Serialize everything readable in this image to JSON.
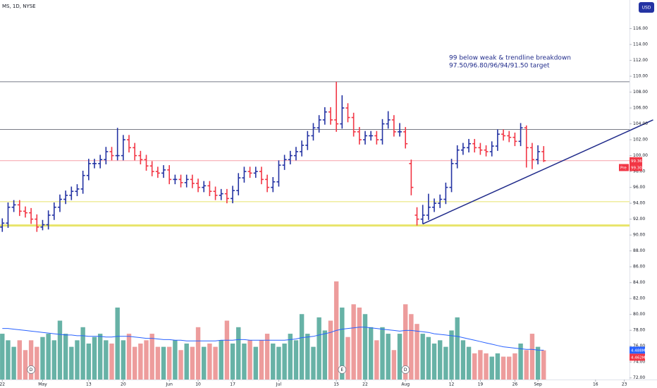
{
  "chart_data": {
    "type": "ohlc",
    "title": "MS, 1D, NYSE",
    "currency": "USD",
    "annotation": [
      "99 below weak & trendline breakdown",
      "97.50/96.80/96/94/91.50 target"
    ],
    "xlim": [
      -0.4,
      108.9
    ],
    "xticks": [
      {
        "value": 0,
        "label": "22"
      },
      {
        "value": 7,
        "label": "May"
      },
      {
        "value": 15,
        "label": "13"
      },
      {
        "value": 21,
        "label": "20"
      },
      {
        "value": 29,
        "label": "Jun"
      },
      {
        "value": 34,
        "label": "10"
      },
      {
        "value": 40,
        "label": "17"
      },
      {
        "value": 48,
        "label": "Jul"
      },
      {
        "value": 58,
        "label": "15"
      },
      {
        "value": 63,
        "label": "22"
      },
      {
        "value": 70,
        "label": "Aug"
      },
      {
        "value": 78,
        "label": "12"
      },
      {
        "value": 83,
        "label": "19"
      },
      {
        "value": 89,
        "label": "26"
      },
      {
        "value": 93,
        "label": "Sep"
      },
      {
        "value": 103,
        "label": "16"
      },
      {
        "value": 108,
        "label": "23"
      }
    ],
    "ylim": [
      71.8,
      119.6
    ],
    "yticks": [
      {
        "value": 116,
        "label": "116.00"
      },
      {
        "value": 114,
        "label": "114.00"
      },
      {
        "value": 112,
        "label": "112.00"
      },
      {
        "value": 110,
        "label": "110.00"
      },
      {
        "value": 108,
        "label": "108.00"
      },
      {
        "value": 106,
        "label": "106.00"
      },
      {
        "value": 104,
        "label": "104.00"
      },
      {
        "value": 102,
        "label": "102.00"
      },
      {
        "value": 100,
        "label": "100.00"
      },
      {
        "value": 98,
        "label": "98.00"
      },
      {
        "value": 96,
        "label": "96.00"
      },
      {
        "value": 94,
        "label": "94.00"
      },
      {
        "value": 92,
        "label": "92.00"
      },
      {
        "value": 90,
        "label": "90.00"
      },
      {
        "value": 88,
        "label": "88.00"
      },
      {
        "value": 86,
        "label": "86.00"
      },
      {
        "value": 84,
        "label": "84.00"
      },
      {
        "value": 82,
        "label": "82.00"
      },
      {
        "value": 80,
        "label": "80.00"
      },
      {
        "value": 78,
        "label": "78.00"
      },
      {
        "value": 76,
        "label": "76.00"
      },
      {
        "value": 74,
        "label": "74.00"
      },
      {
        "value": 72,
        "label": "72.00"
      }
    ],
    "up_color": "#2433a3",
    "down_color": "#f23645",
    "open": [
      91,
      91.5,
      93.5,
      93.8,
      93,
      92.8,
      92,
      91,
      91.3,
      92.5,
      93.5,
      94.5,
      95,
      95.5,
      95.8,
      97.5,
      99,
      99,
      99.5,
      100.5,
      100,
      100,
      102,
      101,
      100,
      99.5,
      98.7,
      98,
      97.8,
      98.2,
      97,
      97,
      96.6,
      97,
      96.5,
      96,
      96.2,
      95.5,
      95,
      95.2,
      94.6,
      95.6,
      97.2,
      98,
      97.8,
      98,
      97,
      96,
      96.7,
      98.8,
      99.5,
      100,
      100.5,
      101.3,
      102.5,
      103.5,
      104.5,
      105.5,
      104.5,
      104,
      106,
      104.8,
      103,
      102,
      102.5,
      102.5,
      102,
      104,
      104.5,
      103,
      103,
      99,
      92.5,
      92,
      92.5,
      93.5,
      94,
      94.5,
      96,
      99,
      100.7,
      101,
      101.5,
      101,
      100.7,
      100.5,
      101.2,
      102.7,
      102.5,
      102.3,
      101.8,
      103.5,
      101,
      99.5,
      100.5
    ],
    "high": [
      92.1,
      94.1,
      94.4,
      94.4,
      93.6,
      93.4,
      92.6,
      91.9,
      93.1,
      94.1,
      95.1,
      95.6,
      96.1,
      96.4,
      98.1,
      99.6,
      99.6,
      100.1,
      101.1,
      101.1,
      103.5,
      102.6,
      102.6,
      101.6,
      100.6,
      100.1,
      99.3,
      98.6,
      98.8,
      98.8,
      97.6,
      97.6,
      97.6,
      97.6,
      97.1,
      96.8,
      96.8,
      96.1,
      95.8,
      95.8,
      96.2,
      97.8,
      98.6,
      98.6,
      98.6,
      98.6,
      97.6,
      97.3,
      99.4,
      100.1,
      100.6,
      101.1,
      101.9,
      103.1,
      104.1,
      105.1,
      106.1,
      106.1,
      109.3,
      107.6,
      106.6,
      105.4,
      103.6,
      103.1,
      103.1,
      103.1,
      104.6,
      105.6,
      105.1,
      104.1,
      103.6,
      99.5,
      93.5,
      93.8,
      95.2,
      94.6,
      95.1,
      96.6,
      99.6,
      101.3,
      101.6,
      102.1,
      102.1,
      101.6,
      101.3,
      101.8,
      103.3,
      103.3,
      103.1,
      102.9,
      104.1,
      103.8,
      101.6,
      101.3,
      101.2
    ],
    "low": [
      90.4,
      90.9,
      92.9,
      92.4,
      92.2,
      91.4,
      90.4,
      90.6,
      90.7,
      91.9,
      92.9,
      93.9,
      94.4,
      94.9,
      95.2,
      96.9,
      98.4,
      98.4,
      98.9,
      99.4,
      99.4,
      99.4,
      100.4,
      99.4,
      98.9,
      98.1,
      97.4,
      97.2,
      97.2,
      96.4,
      96.4,
      96,
      96,
      95.9,
      95.4,
      95.4,
      94.9,
      94.4,
      94.4,
      94,
      94,
      95,
      96.6,
      97.2,
      97.2,
      96.4,
      95.4,
      95.4,
      96.1,
      98.2,
      98.9,
      99.4,
      99.9,
      100.7,
      101.9,
      102.9,
      103.9,
      103.9,
      103,
      103.4,
      104.2,
      102.4,
      101.4,
      101.4,
      101.9,
      101.4,
      101.4,
      103.4,
      102.4,
      102.4,
      100.9,
      95,
      91.2,
      91.4,
      91.9,
      92.9,
      93.4,
      93.9,
      95.4,
      98.4,
      100.1,
      100.4,
      100.4,
      100.1,
      99.9,
      99.9,
      100.6,
      101.9,
      101.7,
      101.2,
      101.2,
      98.5,
      98.3,
      98.9,
      99.2
    ],
    "close": [
      91.5,
      93.5,
      93.8,
      93,
      92.8,
      92,
      91,
      91.3,
      92.5,
      93.5,
      94.5,
      95,
      95.5,
      95.8,
      97.5,
      99,
      99,
      99.5,
      100.5,
      100,
      100,
      102,
      101,
      100,
      99.5,
      98.7,
      98,
      97.8,
      98.2,
      97,
      97,
      96.6,
      97,
      96.5,
      96,
      96.2,
      95.5,
      95,
      95.2,
      94.6,
      95.6,
      97.2,
      98,
      97.8,
      98,
      97,
      96,
      96.7,
      98.8,
      99.5,
      100,
      100.5,
      101.3,
      102.5,
      103.5,
      104.5,
      105.5,
      104.5,
      104,
      106,
      104.8,
      103,
      102,
      102.5,
      102.5,
      102,
      104,
      104.5,
      103,
      103,
      101.5,
      96,
      92,
      92.5,
      93.5,
      94,
      94.5,
      96,
      99,
      100.7,
      101,
      101.5,
      101,
      100.7,
      100.5,
      101.2,
      102.7,
      102.5,
      102.3,
      101.8,
      103.5,
      101,
      99.5,
      100.5,
      99.36
    ],
    "last_price": {
      "value": 99.36,
      "label": "99.36",
      "color": "#f23645"
    },
    "pre_market": {
      "name": "Pre",
      "value": 99.3,
      "label": "99.30"
    },
    "hlines": [
      {
        "value": 109.3,
        "color": "#787b86",
        "width": 1
      },
      {
        "value": 103.3,
        "color": "#787b86",
        "width": 1
      },
      {
        "value": 99.36,
        "color": "#f7a1a8",
        "width": 1
      },
      {
        "value": 94.2,
        "color": "#e8e46a",
        "width": 1
      },
      {
        "value": 91.2,
        "color": "#e8e46a",
        "width": 3
      }
    ],
    "trendline": {
      "start": {
        "index": 73,
        "price": 91.4
      },
      "end": {
        "index": 113,
        "price": 104.5
      },
      "color": "#1f2a8a"
    },
    "events": [
      {
        "index": 5,
        "label": "D"
      },
      {
        "index": 59,
        "label": "E"
      },
      {
        "index": 70,
        "label": "D"
      }
    ],
    "volume": {
      "vlim": [
        0,
        58
      ],
      "up_color": "#4ca597",
      "down_color": "#ea8b8b",
      "ma_color": "#2962ff",
      "values": [
        7,
        6,
        5,
        6,
        4.5,
        6,
        5,
        6.5,
        7,
        6,
        9,
        7,
        5,
        6,
        8,
        5.5,
        6.5,
        7,
        6,
        5.5,
        11,
        6,
        7,
        5,
        5.5,
        6,
        7,
        5,
        5,
        5,
        6,
        4.5,
        5.5,
        5,
        8,
        5,
        5.5,
        5,
        6,
        9,
        5.5,
        8,
        5.5,
        6,
        5,
        6,
        7,
        5.5,
        5,
        5.5,
        7,
        6,
        10,
        7,
        5,
        9.5,
        7.5,
        9,
        15,
        11,
        6.5,
        11.5,
        11,
        10,
        8,
        6,
        8,
        7,
        4.5,
        7,
        11.5,
        10,
        8.5,
        7,
        6.5,
        5.5,
        6,
        5,
        7.5,
        9.5,
        6,
        5,
        4,
        4.5,
        4,
        3.5,
        4,
        3.5,
        3.5,
        4,
        5.5,
        4.5,
        7,
        5,
        4.462
      ],
      "ma": [
        7.8,
        7.8,
        7.7,
        7.6,
        7.5,
        7.4,
        7.3,
        7.2,
        7.1,
        7.0,
        6.9,
        6.8,
        6.8,
        6.7,
        6.7,
        6.6,
        6.6,
        6.6,
        6.5,
        6.5,
        6.6,
        6.6,
        6.6,
        6.5,
        6.4,
        6.3,
        6.3,
        6.2,
        6.1,
        6.1,
        6.0,
        6.0,
        5.9,
        5.9,
        5.9,
        5.9,
        5.9,
        5.9,
        6.0,
        6.0,
        6.0,
        6.1,
        6.1,
        6.0,
        6.0,
        6.0,
        6.0,
        6.0,
        6.0,
        6.0,
        6.1,
        6.2,
        6.4,
        6.5,
        6.6,
        6.8,
        7.0,
        7.2,
        7.5,
        7.7,
        7.8,
        7.9,
        8.0,
        8.0,
        7.9,
        7.8,
        7.7,
        7.6,
        7.5,
        7.4,
        7.5,
        7.5,
        7.4,
        7.3,
        7.2,
        7.0,
        6.9,
        6.8,
        6.7,
        6.6,
        6.4,
        6.2,
        6.0,
        5.8,
        5.6,
        5.4,
        5.2,
        5.0,
        4.9,
        4.8,
        4.7,
        4.6,
        4.6,
        4.5,
        4.488
      ],
      "last_label": "4.462M",
      "ma_label": "4.488M"
    }
  }
}
